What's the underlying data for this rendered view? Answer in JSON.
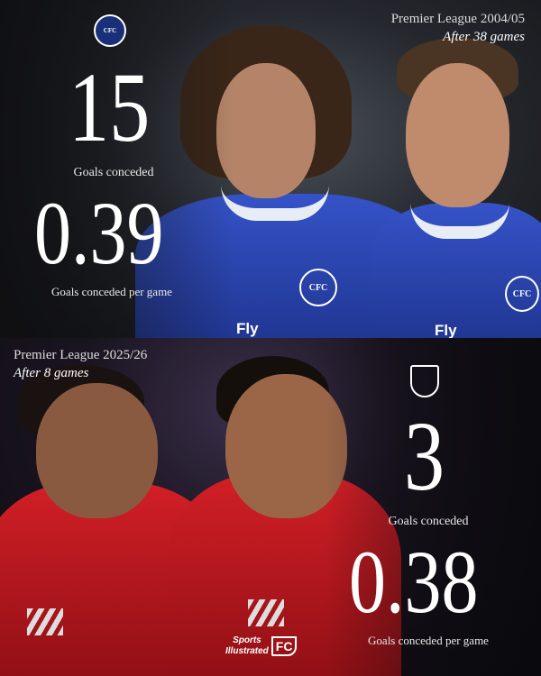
{
  "chelsea": {
    "competition": "Premier League 2004/05",
    "games": "After 38 games",
    "goals_conceded": "15",
    "goals_conceded_label": "Goals conceded",
    "per_game": "0.39",
    "per_game_label": "Goals conceded per game",
    "crest": "chelsea-crest-icon",
    "kit_color": "#2a47b8",
    "sponsor": "Fly"
  },
  "arsenal": {
    "competition": "Premier League 2025/26",
    "games": "After 8 games",
    "goals_conceded": "3",
    "goals_conceded_label": "Goals conceded",
    "per_game": "0.38",
    "per_game_label": "Goals conceded per game",
    "crest": "arsenal-crest-icon",
    "kit_color": "#c8161d"
  },
  "branding": {
    "logo_line1": "Sports",
    "logo_line2": "Illustrated",
    "logo_fc": "FC"
  }
}
